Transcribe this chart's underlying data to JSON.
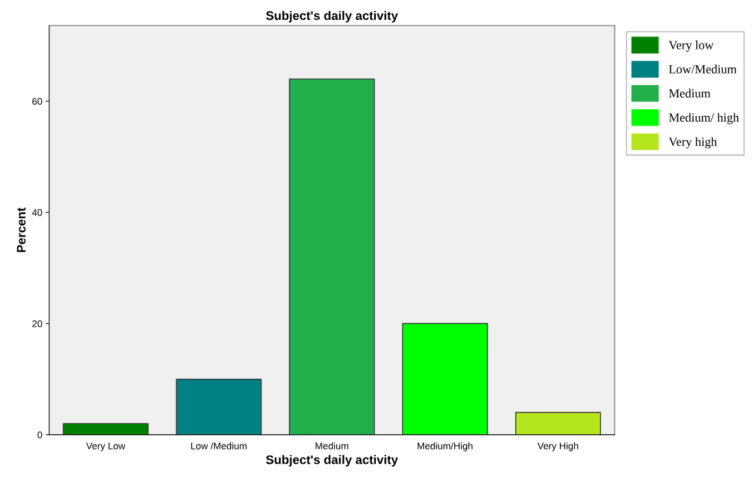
{
  "chart_data": {
    "type": "bar",
    "title": "Subject's daily activity",
    "xlabel": "Subject's daily activity",
    "ylabel": "Percent",
    "categories": [
      "Very Low",
      "Low /Medium",
      "Medium",
      "Medium/High",
      "Very High"
    ],
    "series": [
      {
        "name": "Very low",
        "color": "#008000",
        "values": [
          2,
          null,
          null,
          null,
          null
        ]
      },
      {
        "name": "Low/Medium",
        "color": "#008080",
        "values": [
          null,
          10,
          null,
          null,
          null
        ]
      },
      {
        "name": "Medium",
        "color": "#23b04c",
        "values": [
          null,
          null,
          64,
          null,
          null
        ]
      },
      {
        "name": "Medium/ high",
        "color": "#00ff00",
        "values": [
          null,
          null,
          null,
          20,
          null
        ]
      },
      {
        "name": "Very high",
        "color": "#b5e61d",
        "values": [
          null,
          null,
          null,
          null,
          4
        ]
      }
    ],
    "ylim": [
      0,
      73.6
    ],
    "yticks": [
      0,
      20,
      40,
      60
    ],
    "grid": false,
    "legend": "top right"
  }
}
